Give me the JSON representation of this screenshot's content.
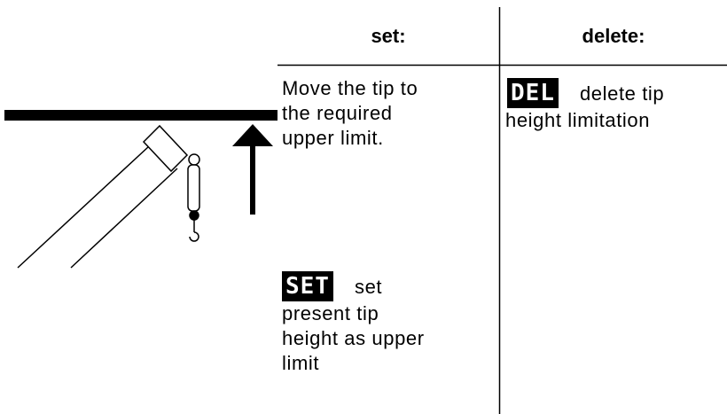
{
  "table": {
    "headers": [
      "set:",
      "delete:"
    ],
    "set": {
      "lines": [
        "Move the tip to",
        "the required",
        "upper limit."
      ],
      "key": "SET",
      "key_lines": [
        "set",
        "present tip",
        "height as upper",
        "limit"
      ]
    },
    "delete": {
      "key": "DEL",
      "key_lines": [
        "delete tip",
        "height limitation"
      ]
    }
  }
}
